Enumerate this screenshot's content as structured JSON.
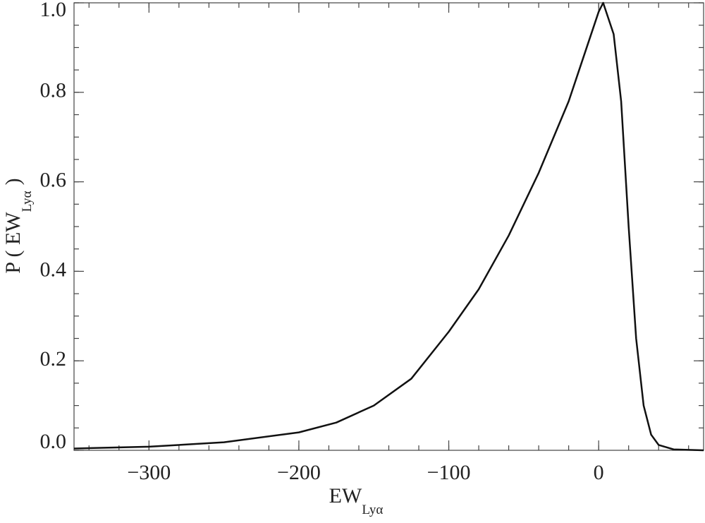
{
  "chart_data": {
    "type": "line",
    "xlabel": "EW",
    "xlabel_sub": "Lyα",
    "ylabel": "P ( EW",
    "ylabel_sub": "Lyα",
    "ylabel_end": ")",
    "x": [
      -350,
      -300,
      -250,
      -200,
      -175,
      -150,
      -125,
      -100,
      -80,
      -60,
      -40,
      -20,
      -10,
      0,
      3,
      10,
      15,
      20,
      25,
      30,
      35,
      40,
      50,
      70
    ],
    "series": [
      {
        "color": "#111111",
        "values": [
          0.004,
          0.008,
          0.018,
          0.04,
          0.062,
          0.1,
          0.16,
          0.265,
          0.36,
          0.48,
          0.62,
          0.78,
          0.88,
          0.98,
          1.0,
          0.93,
          0.78,
          0.5,
          0.25,
          0.1,
          0.035,
          0.012,
          0.002,
          0.0
        ]
      }
    ],
    "xlim": [
      -350,
      70
    ],
    "xticks": [
      {
        "value": -300,
        "label": "−300"
      },
      {
        "value": -200,
        "label": "−200"
      },
      {
        "value": -100,
        "label": "−100"
      },
      0
    ],
    "ylim": [
      0,
      1.0
    ],
    "yticks": [
      {
        "value": 0,
        "label": "0.0"
      },
      0.2,
      0.4,
      0.6,
      0.8,
      {
        "value": 1.0,
        "label": "1.0"
      }
    ],
    "grid": false
  }
}
